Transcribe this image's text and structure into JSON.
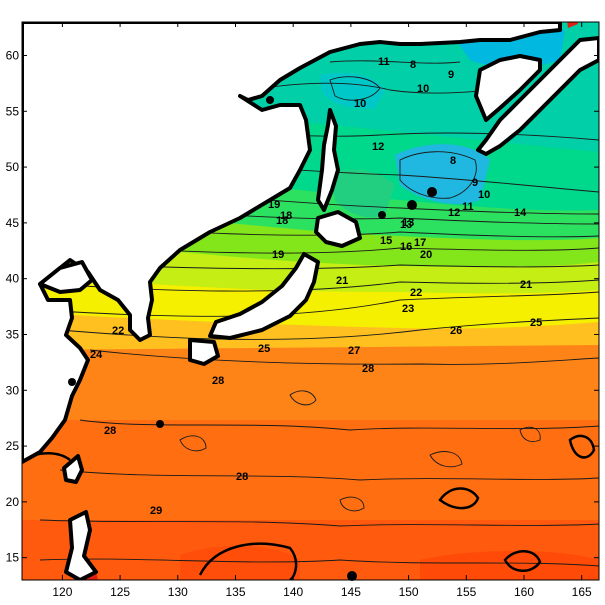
{
  "map": {
    "x_ticks": [
      "120",
      "125",
      "130",
      "135",
      "140",
      "145",
      "150",
      "155",
      "160",
      "165"
    ],
    "y_ticks": [
      "60",
      "55",
      "50",
      "45",
      "40",
      "35",
      "30",
      "25",
      "20",
      "15"
    ],
    "x_range": [
      116.5,
      166.5
    ],
    "y_range": [
      13,
      63
    ],
    "colors": {
      "land": "#ffffff",
      "coastline": "#000000",
      "contour": "#1a1a1a",
      "frame": "#000000"
    },
    "color_bands": [
      {
        "from_lat": 13,
        "to_lat": 22,
        "color": "#ff5a0e"
      },
      {
        "from_lat": 22,
        "to_lat": 28,
        "color": "#ff6e10"
      },
      {
        "from_lat": 28,
        "to_lat": 33,
        "color": "#ff8418"
      },
      {
        "from_lat": 33,
        "to_lat": 35,
        "color": "#ffc020"
      },
      {
        "from_lat": 35,
        "to_lat": 38,
        "color": "#f5ef00"
      },
      {
        "from_lat": 38,
        "to_lat": 41,
        "color": "#c4ee14"
      },
      {
        "from_lat": 41,
        "to_lat": 44,
        "color": "#82e61a"
      },
      {
        "from_lat": 44,
        "to_lat": 48,
        "color": "#2ce060"
      },
      {
        "from_lat": 48,
        "to_lat": 54,
        "color": "#00d88c"
      },
      {
        "from_lat": 54,
        "to_lat": 63,
        "color": "#00cfa8"
      }
    ],
    "contour_labels": [
      "11",
      "9",
      "8",
      "10",
      "10",
      "12",
      "8",
      "9",
      "10",
      "11",
      "12",
      "13",
      "14",
      "15",
      "16",
      "17",
      "18",
      "19",
      "19",
      "20",
      "21",
      "21",
      "22",
      "22",
      "23",
      "24",
      "25",
      "25",
      "26",
      "27",
      "28",
      "28",
      "28",
      "28",
      "29",
      "18",
      "13"
    ]
  }
}
